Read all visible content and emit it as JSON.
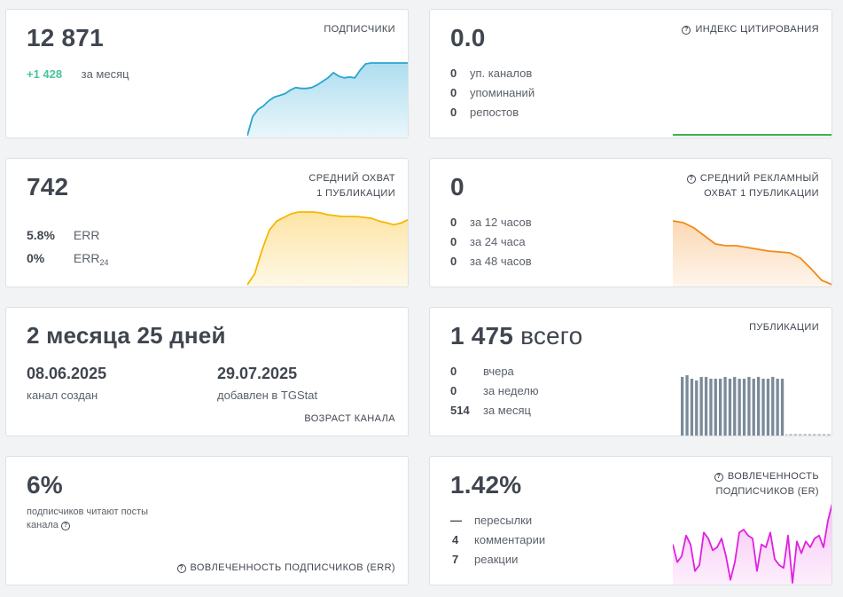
{
  "cards": {
    "subscribers": {
      "value": "12 871",
      "title": "ПОДПИСЧИКИ",
      "delta": "+1 428",
      "delta_label": "за месяц",
      "chart_color": "#2aa5d0",
      "chart_fill": "#a9dcee",
      "trend": [
        0,
        22,
        30,
        34,
        40,
        44,
        46,
        48,
        52,
        55,
        54,
        54,
        55,
        58,
        62,
        66,
        72,
        68,
        66,
        67,
        66,
        75,
        82,
        83,
        83,
        83,
        83,
        83,
        83,
        83,
        83
      ]
    },
    "citation": {
      "value": "0.0",
      "title": "ИНДЕКС ЦИТИРОВАНИЯ",
      "rows": [
        {
          "num": "0",
          "label": "уп. каналов"
        },
        {
          "num": "0",
          "label": "упоминаний"
        },
        {
          "num": "0",
          "label": "репостов"
        }
      ],
      "chart_color": "#3cb54a"
    },
    "reach": {
      "value": "742",
      "title_line1": "СРЕДНИЙ ОХВАТ",
      "title_line2": "1 ПУБЛИКАЦИИ",
      "err_value": "5.8%",
      "err_label": "ERR",
      "err24_value": "0%",
      "err24_label": "ERR",
      "err24_sub": "24",
      "chart_color": "#f5b800",
      "chart_fill": "#fde3a0",
      "trend": [
        0,
        12,
        38,
        60,
        70,
        74,
        78,
        80,
        80,
        80,
        79,
        77,
        76,
        75,
        75,
        75,
        74,
        73,
        70,
        68,
        66,
        68,
        72
      ]
    },
    "ad_reach": {
      "value": "0",
      "title_line1": "СРЕДНИЙ РЕКЛАМНЫЙ",
      "title_line2": "ОХВАТ 1 ПУБЛИКАЦИИ",
      "rows": [
        {
          "num": "0",
          "label": "за 12 часов"
        },
        {
          "num": "0",
          "label": "за 24 часа"
        },
        {
          "num": "0",
          "label": "за 48 часов"
        }
      ],
      "chart_color": "#f08a1c",
      "chart_fill": "#fbd6b0",
      "trend": [
        72,
        70,
        64,
        55,
        46,
        44,
        44,
        42,
        40,
        38,
        37,
        36,
        30,
        18,
        5,
        0
      ]
    },
    "age": {
      "value": "2 месяца 25 дней",
      "created_date": "08.06.2025",
      "created_label": "канал создан",
      "added_date": "29.07.2025",
      "added_label": "добавлен в TGStat",
      "title": "ВОЗРАСТ КАНАЛА"
    },
    "posts": {
      "value": "1 475",
      "value_suffix": "всего",
      "title": "ПУБЛИКАЦИИ",
      "rows": [
        {
          "num": "0",
          "label": "вчера"
        },
        {
          "num": "0",
          "label": "за неделю"
        },
        {
          "num": "514",
          "label": "за месяц"
        }
      ],
      "chart_color": "#7a8a99",
      "bars": [
        68,
        70,
        66,
        64,
        68,
        68,
        66,
        66,
        66,
        68,
        66,
        68,
        66,
        66,
        68,
        66,
        68,
        66,
        66,
        68,
        66,
        66,
        0,
        0,
        0,
        0,
        0,
        0,
        0,
        0,
        0,
        0
      ]
    },
    "err": {
      "value": "6%",
      "text_line1": "подписчиков читают посты",
      "text_line2": "канала",
      "title": "ВОВЛЕЧЕННОСТЬ ПОДПИСЧИКОВ (ERR)"
    },
    "er": {
      "value": "1.42%",
      "title_line1": "ВОВЛЕЧЕННОСТЬ",
      "title_line2": "ПОДПИСЧИКОВ (ER)",
      "rows": [
        {
          "num": "—",
          "label": "пересылки"
        },
        {
          "num": "4",
          "label": "комментарии"
        },
        {
          "num": "7",
          "label": "реакции"
        }
      ],
      "chart_color": "#e020e0",
      "chart_fill": "#f7c0f4",
      "trend": [
        32,
        20,
        24,
        38,
        32,
        14,
        18,
        40,
        36,
        28,
        30,
        36,
        24,
        8,
        20,
        40,
        42,
        38,
        36,
        14,
        32,
        30,
        40,
        22,
        18,
        16,
        38,
        6,
        34,
        26,
        34,
        30,
        36,
        38,
        30,
        48,
        60
      ]
    }
  }
}
